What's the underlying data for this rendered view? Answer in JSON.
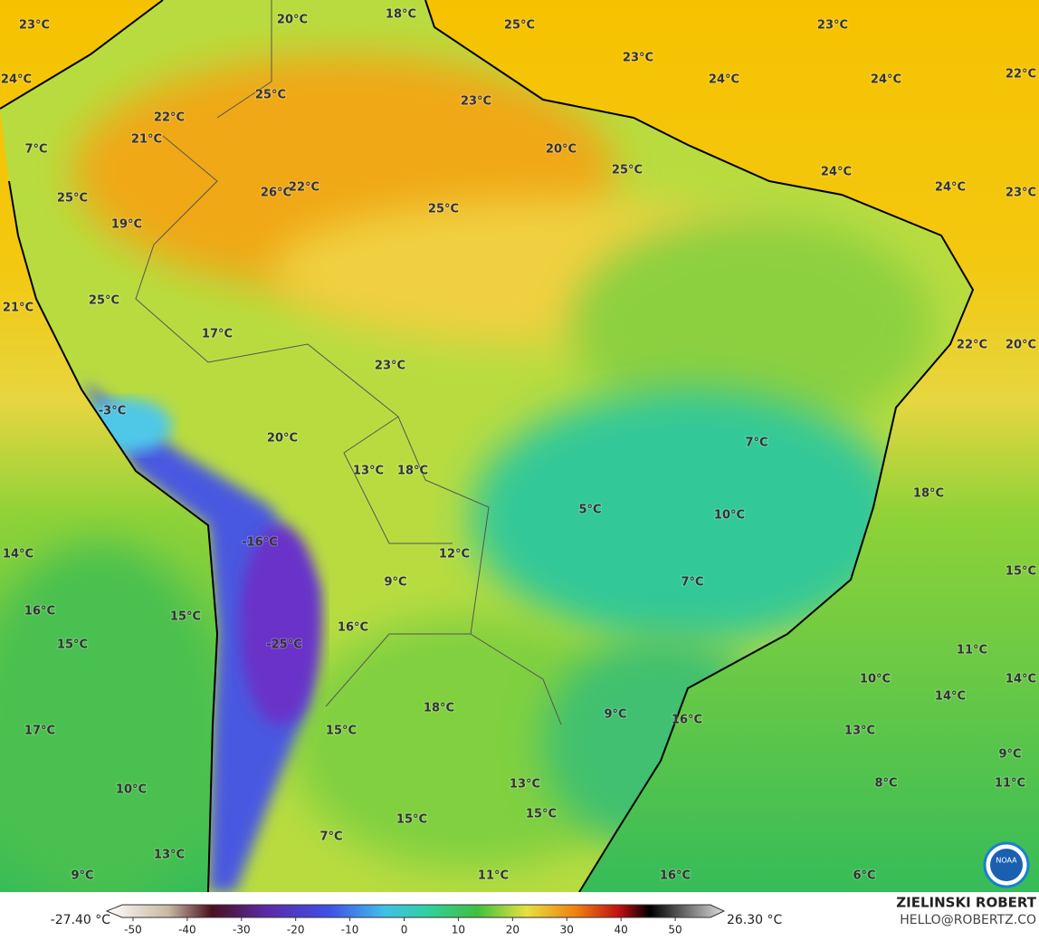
{
  "map": {
    "labels": [
      "23°C",
      "18°C",
      "20°C",
      "25°C",
      "23°C",
      "24°C",
      "23°C",
      "24°C",
      "24°C",
      "22°C",
      "25°C",
      "23°C",
      "22°C",
      "21°C",
      "7°C",
      "20°C",
      "25°C",
      "24°C",
      "26°C",
      "22°C",
      "25°C",
      "24°C",
      "23°C",
      "25°C",
      "19°C",
      "25°C",
      "21°C",
      "17°C",
      "22°C",
      "20°C",
      "23°C",
      "-3°C",
      "7°C",
      "20°C",
      "13°C",
      "18°C",
      "18°C",
      "5°C",
      "10°C",
      "-16°C",
      "14°C",
      "12°C",
      "15°C",
      "9°C",
      "7°C",
      "16°C",
      "15°C",
      "16°C",
      "-25°C",
      "15°C",
      "11°C",
      "10°C",
      "14°C",
      "14°C",
      "18°C",
      "9°C",
      "16°C",
      "17°C",
      "15°C",
      "13°C",
      "9°C",
      "8°C",
      "11°C",
      "13°C",
      "10°C",
      "15°C",
      "15°C",
      "7°C",
      "13°C",
      "9°C",
      "11°C",
      "16°C",
      "6°C"
    ],
    "colorbar": {
      "min_label": "-27.40 °C",
      "max_label": "26.30 °C",
      "xlim": [
        -52,
        56.5
      ],
      "ticks": [
        -50,
        -40,
        -30,
        -20,
        -10,
        0,
        10,
        20,
        30,
        40,
        50
      ]
    },
    "credit": {
      "name": "ZIELINSKI ROBERT",
      "email": "HELLO@ROBERTZ.CO"
    },
    "logo": "NOAA"
  }
}
